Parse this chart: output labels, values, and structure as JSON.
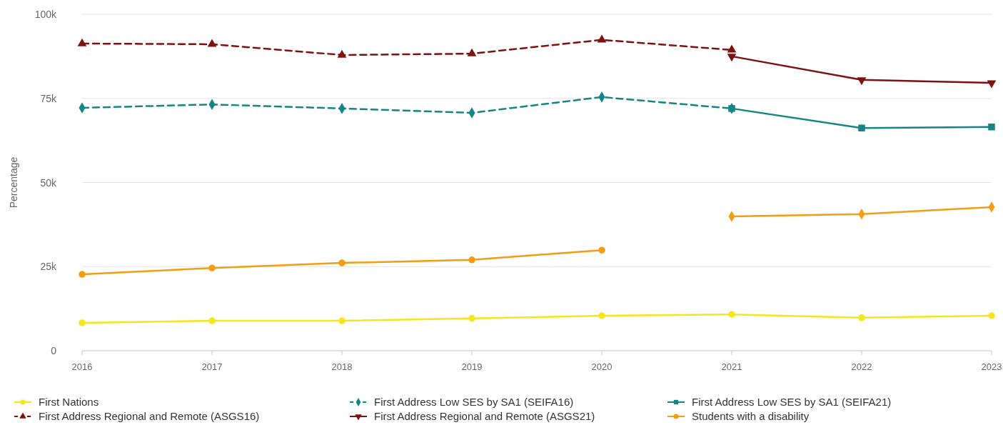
{
  "chart_data": {
    "type": "line",
    "ylabel": "Percentage",
    "x": [
      2016,
      2017,
      2018,
      2019,
      2020,
      2021,
      2022,
      2023
    ],
    "xlim": [
      2016,
      2023
    ],
    "xticks": [
      2016,
      2017,
      2018,
      2019,
      2020,
      2021,
      2022,
      2023
    ],
    "ylim": [
      0,
      100000
    ],
    "yticks": [
      {
        "value": 0,
        "label": "0"
      },
      {
        "value": 25000,
        "label": "25k"
      },
      {
        "value": 50000,
        "label": "50k"
      },
      {
        "value": 75000,
        "label": "75k"
      },
      {
        "value": 100000,
        "label": "100k"
      }
    ],
    "grid": "y",
    "legend": "bottom",
    "series": [
      {
        "name": "First Nations",
        "color": "#f5e51b",
        "marker": "circle",
        "line_style": "solid",
        "values": [
          8300,
          8900,
          8900,
          9600,
          10400,
          10800,
          9800,
          10400
        ]
      },
      {
        "name": "First Address Low SES by SA1 (SEIFA16)",
        "color": "#138584",
        "marker": "diamond",
        "line_style": "dashed",
        "values": [
          72200,
          73200,
          72000,
          70700,
          75400,
          72000,
          null,
          null
        ]
      },
      {
        "name": "First Address Low SES by SA1 (SEIFA21)",
        "color": "#138584",
        "marker": "square",
        "line_style": "solid",
        "values": [
          null,
          null,
          null,
          null,
          null,
          72000,
          66200,
          66500
        ]
      },
      {
        "name": "First Address Regional and Remote (ASGS16)",
        "color": "#7f1010",
        "marker": "triangle",
        "line_style": "dashed",
        "values": [
          91300,
          91100,
          87900,
          88300,
          92400,
          89400,
          null,
          null
        ]
      },
      {
        "name": "First Address Regional and Remote (ASGS21)",
        "color": "#7f1010",
        "marker": "triangle-down",
        "line_style": "solid",
        "values": [
          null,
          null,
          null,
          null,
          null,
          87500,
          80500,
          79600
        ]
      },
      {
        "name": "Students with a disability",
        "color": "#f29d12",
        "marker": "circle",
        "line_style": "solid",
        "values": [
          22700,
          24600,
          26100,
          27000,
          29900,
          null,
          null,
          null
        ]
      },
      {
        "color": "#f29d12",
        "marker": "diamond",
        "line_style": "solid",
        "values": [
          null,
          null,
          null,
          null,
          null,
          39900,
          40600,
          42700
        ]
      }
    ]
  }
}
